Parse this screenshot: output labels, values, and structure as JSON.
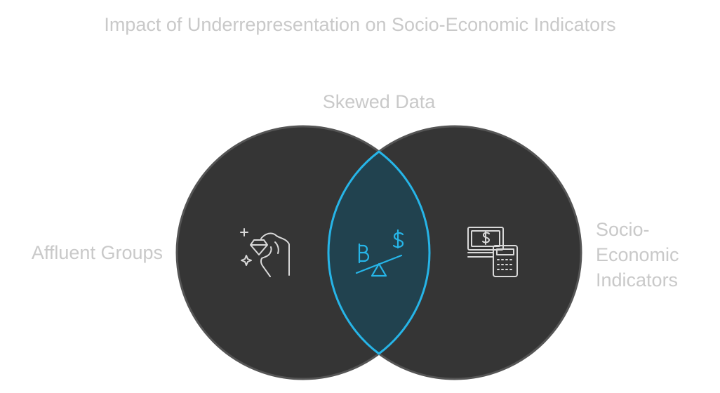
{
  "title": "Impact of Underrepresentation on Socio-Economic Indicators",
  "sets": [
    {
      "id": "left",
      "label": "Affluent Groups",
      "icon": "hand-diamond-icon"
    },
    {
      "id": "right",
      "label_lines": [
        "Socio-",
        "Economic",
        "Indicators"
      ],
      "icon": "money-calculator-icon"
    }
  ],
  "intersection": {
    "label": "Skewed Data",
    "icon": "balance-scale-bitcoin-dollar-icon"
  },
  "colors": {
    "circle_fill": "#353535",
    "circle_stroke": "#555555",
    "overlap_fill": "#21424f",
    "overlap_stroke": "#26b5e8",
    "icon_light": "#d9d9d9",
    "label": "#c9c9c9"
  }
}
